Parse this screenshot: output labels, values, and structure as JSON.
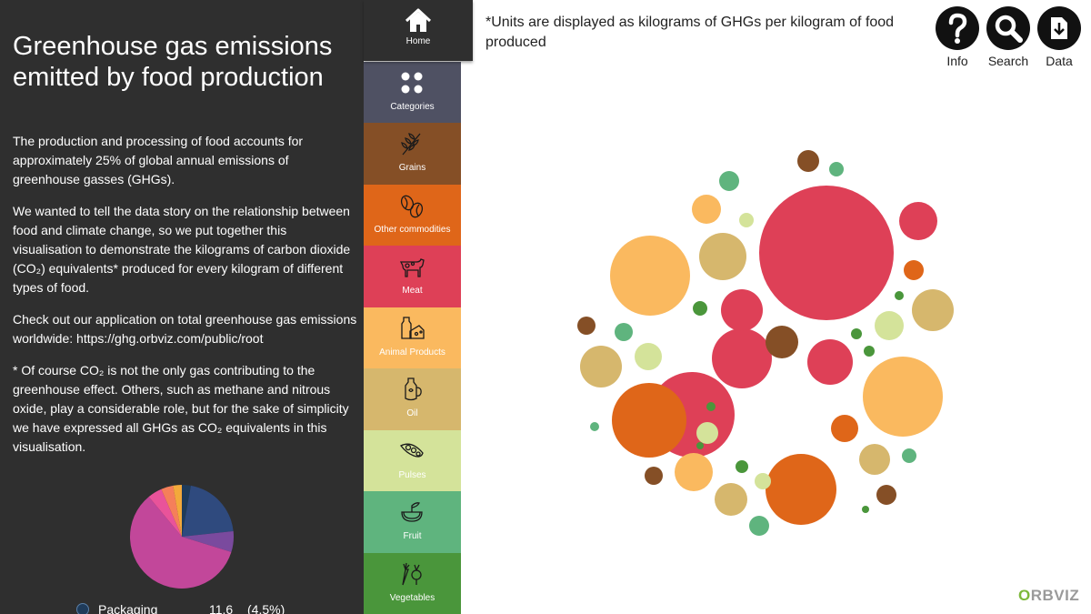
{
  "panel": {
    "title": "Greenhouse gas emissions emitted by food production",
    "paragraphs": [
      "The production and processing of food accounts for approximately 25% of global annual emissions of greenhouse gasses (GHGs).",
      "We wanted to tell the data story on the relationship between food and climate change, so we put together this visualisation to demonstrate the kilograms of carbon dioxide (CO₂) equivalents* produced for every kilogram of different types of food.",
      "Check out our application on total greenhouse gas emissions worldwide: https://ghg.orbviz.com/public/root",
      "* Of course CO₂ is not the only gas contributing to the greenhouse effect. Others, such as methane and nitrous oxide, play a considerable role, but for the sake of simplicity we have expressed all GHGs as CO₂ equivalents in this visualisation."
    ],
    "pie_slices": [
      {
        "value": 2.8,
        "color": "#1f3b5a"
      },
      {
        "value": 20.5,
        "color": "#2f4a7e"
      },
      {
        "value": 6.5,
        "color": "#7a4a9e"
      },
      {
        "value": 59.2,
        "color": "#c2479a"
      },
      {
        "value": 4.5,
        "color": "#e9539a"
      },
      {
        "value": 3.8,
        "color": "#f57f5a"
      },
      {
        "value": 2.7,
        "color": "#f3a93b"
      }
    ],
    "legend": {
      "label": "Packaging",
      "value": "11.6",
      "percent": "(4.5%)"
    }
  },
  "nav": {
    "home": {
      "label": "Home",
      "icon": "home-icon"
    },
    "categories": [
      {
        "label": "Categories",
        "icon": "categories-grid-icon",
        "color": "#4f5163"
      },
      {
        "label": "Grains",
        "icon": "wheat-icon",
        "color": "#854f26"
      },
      {
        "label": "Other commodities",
        "icon": "coffee-bean-icon",
        "color": "#df6619"
      },
      {
        "label": "Meat",
        "icon": "cow-icon",
        "color": "#de4057"
      },
      {
        "label": "Animal Products",
        "icon": "milk-cheese-icon",
        "color": "#fab95f"
      },
      {
        "label": "Oil",
        "icon": "oil-jug-icon",
        "color": "#d6b76d"
      },
      {
        "label": "Pulses",
        "icon": "bean-pod-icon",
        "color": "#d4e39a"
      },
      {
        "label": "Fruit",
        "icon": "fruit-icon",
        "color": "#5fb47e"
      },
      {
        "label": "Vegetables",
        "icon": "vegetables-icon",
        "color": "#4a963b"
      }
    ]
  },
  "top": {
    "units_note": "*Units are displayed as kilograms of GHGs per kilogram of food produced",
    "buttons": [
      {
        "label": "Info",
        "icon": "question-icon"
      },
      {
        "label": "Search",
        "icon": "search-icon"
      },
      {
        "label": "Data",
        "icon": "download-icon"
      }
    ]
  },
  "bubbles": [
    {
      "category": "Meat",
      "color": "#de4057"
    },
    {
      "category": "Meat",
      "color": "#de4057"
    },
    {
      "category": "Meat",
      "color": "#de4057"
    },
    {
      "category": "Meat",
      "color": "#de4057"
    },
    {
      "category": "Meat",
      "color": "#de4057"
    },
    {
      "category": "Meat",
      "color": "#de4057"
    },
    {
      "category": "Animal Products",
      "color": "#fab95f"
    },
    {
      "category": "Animal Products",
      "color": "#fab95f"
    },
    {
      "category": "Animal Products",
      "color": "#fab95f"
    },
    {
      "category": "Animal Products",
      "color": "#fab95f"
    },
    {
      "category": "Other commodities",
      "color": "#df6619"
    },
    {
      "category": "Other commodities",
      "color": "#df6619"
    },
    {
      "category": "Other commodities",
      "color": "#df6619"
    },
    {
      "category": "Other commodities",
      "color": "#df6619"
    },
    {
      "category": "Oil",
      "color": "#d6b76d"
    },
    {
      "category": "Oil",
      "color": "#d6b76d"
    },
    {
      "category": "Oil",
      "color": "#d6b76d"
    },
    {
      "category": "Oil",
      "color": "#d6b76d"
    },
    {
      "category": "Oil",
      "color": "#d6b76d"
    },
    {
      "category": "Grains",
      "color": "#854f26"
    },
    {
      "category": "Grains",
      "color": "#854f26"
    },
    {
      "category": "Grains",
      "color": "#854f26"
    },
    {
      "category": "Grains",
      "color": "#854f26"
    },
    {
      "category": "Grains",
      "color": "#854f26"
    },
    {
      "category": "Pulses",
      "color": "#d4e39a"
    },
    {
      "category": "Pulses",
      "color": "#d4e39a"
    },
    {
      "category": "Pulses",
      "color": "#d4e39a"
    },
    {
      "category": "Pulses",
      "color": "#d4e39a"
    },
    {
      "category": "Pulses",
      "color": "#d4e39a"
    },
    {
      "category": "Fruit",
      "color": "#5fb47e"
    },
    {
      "category": "Fruit",
      "color": "#5fb47e"
    },
    {
      "category": "Fruit",
      "color": "#5fb47e"
    },
    {
      "category": "Fruit",
      "color": "#5fb47e"
    },
    {
      "category": "Fruit",
      "color": "#5fb47e"
    },
    {
      "category": "Fruit",
      "color": "#5fb47e"
    },
    {
      "category": "Vegetables",
      "color": "#4a963b"
    },
    {
      "category": "Vegetables",
      "color": "#4a963b"
    },
    {
      "category": "Vegetables",
      "color": "#4a963b"
    },
    {
      "category": "Vegetables",
      "color": "#4a963b"
    },
    {
      "category": "Vegetables",
      "color": "#4a963b"
    },
    {
      "category": "Vegetables",
      "color": "#4a963b"
    },
    {
      "category": "Vegetables",
      "color": "#4a963b"
    },
    {
      "category": "Vegetables",
      "color": "#4a963b"
    }
  ],
  "brand": {
    "prefix": "",
    "o": "O",
    "rest": "RBVIZ"
  }
}
